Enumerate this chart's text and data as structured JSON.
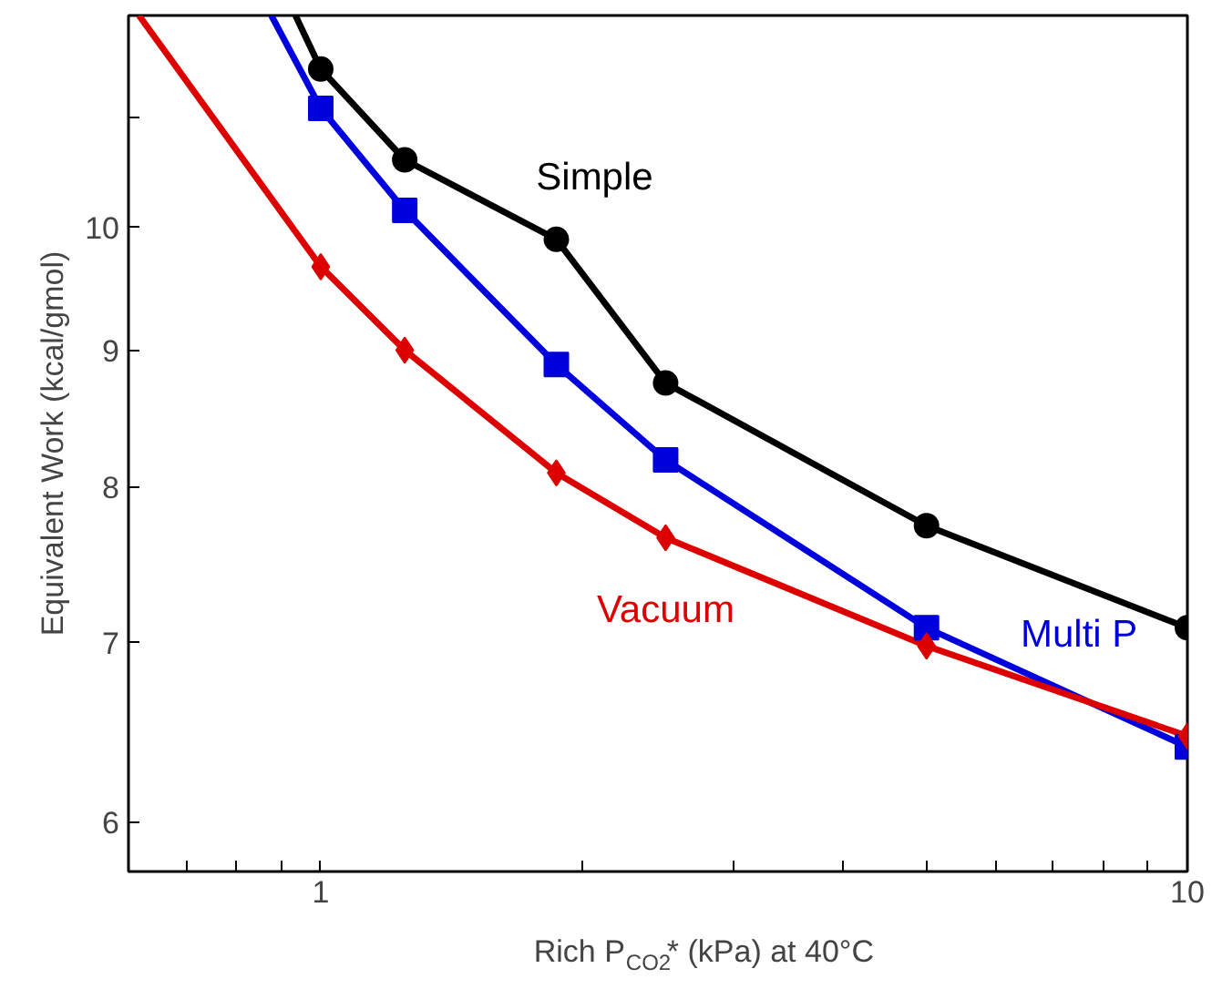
{
  "chart_data": {
    "type": "line",
    "xlabel": "Rich P$_{CO2}$* (kPa) at 40°C",
    "ylabel": "Equivalent Work (kcal/gmol)",
    "log": "xy",
    "xlim": [
      0.6,
      10
    ],
    "ylim": [
      5.75,
      12
    ],
    "xticks": [
      {
        "value": 0.6,
        "label": null
      },
      {
        "value": 0.7,
        "label": null
      },
      {
        "value": 0.8,
        "label": null
      },
      {
        "value": 0.9,
        "label": null
      },
      1,
      {
        "value": 2,
        "label": null
      },
      {
        "value": 3,
        "label": null
      },
      {
        "value": 4,
        "label": null
      },
      {
        "value": 5,
        "label": null
      },
      {
        "value": 6,
        "label": null
      },
      {
        "value": 7,
        "label": null
      },
      {
        "value": 8,
        "label": null
      },
      {
        "value": 9,
        "label": null
      },
      10
    ],
    "yticks": [
      6,
      7,
      8,
      9,
      10,
      {
        "value": 11,
        "label": null
      }
    ],
    "grid": false,
    "line_style": "solid",
    "series": [
      {
        "type": "line",
        "marker": "none",
        "color": "#000000",
        "x": [
          0.935,
          1,
          1.25,
          1.87,
          2.5,
          5,
          10
        ],
        "values": [
          12,
          11.46,
          10.6,
          9.9,
          8.75,
          7.74,
          7.09
        ]
      },
      {
        "type": "line",
        "marker": "none",
        "color": "#0000dd",
        "x": [
          0.877,
          1,
          1.25,
          1.87,
          2.5,
          5,
          10
        ],
        "values": [
          12,
          11.08,
          10.15,
          8.89,
          8.19,
          7.09,
          6.4
        ]
      },
      {
        "type": "line",
        "marker": "none",
        "color": "#dd0000",
        "x": [
          0.617,
          1,
          1.25,
          1.87,
          2.5,
          5,
          10
        ],
        "values": [
          12,
          9.67,
          9.0,
          8.1,
          7.66,
          6.98,
          6.46
        ]
      },
      {
        "type": "scatter",
        "name": "Simple",
        "marker": "circle",
        "color": "#000000",
        "x": [
          1,
          1.25,
          1.87,
          2.5,
          5,
          10
        ],
        "values": [
          11.46,
          10.6,
          9.9,
          8.75,
          7.74,
          7.09
        ]
      },
      {
        "type": "scatter",
        "name": "Multi P",
        "marker": "square",
        "color": "#0000dd",
        "x": [
          1,
          1.25,
          1.87,
          2.5,
          5,
          10
        ],
        "values": [
          11.08,
          10.15,
          8.89,
          8.19,
          7.09,
          6.4
        ]
      },
      {
        "type": "scatter",
        "name": "Vacuum",
        "marker": "diamond",
        "color": "#dd0000",
        "x": [
          1,
          1.25,
          1.87,
          2.5,
          5,
          10
        ],
        "values": [
          9.67,
          9.0,
          8.1,
          7.66,
          6.98,
          6.46
        ]
      }
    ]
  }
}
